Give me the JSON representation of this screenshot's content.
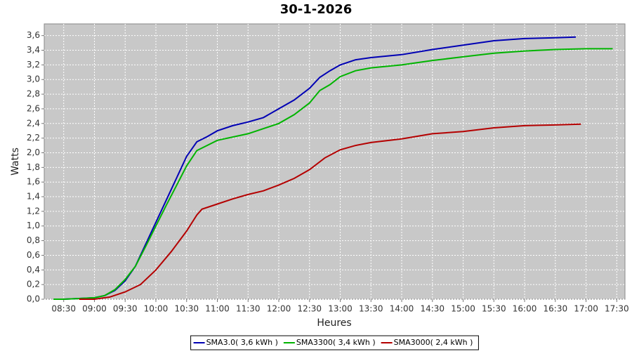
{
  "chart_data": {
    "type": "line",
    "title": "30-1-2026",
    "x_label": "Heures",
    "y_label": "Watts",
    "xlim": [
      "08:11",
      "17:38"
    ],
    "xticks": [
      "08:30",
      "09:00",
      "09:30",
      "10:00",
      "10:30",
      "11:00",
      "11:30",
      "12:00",
      "12:30",
      "13:00",
      "13:30",
      "14:00",
      "14:30",
      "15:00",
      "15:30",
      "16:00",
      "16:30",
      "17:00",
      "17:30"
    ],
    "ylim": [
      0,
      3.76
    ],
    "yticks": [
      {
        "value": 0,
        "label": "0,0"
      },
      {
        "value": 0.2,
        "label": "0,2"
      },
      {
        "value": 0.4,
        "label": "0,4"
      },
      {
        "value": 0.6,
        "label": "0,6"
      },
      {
        "value": 0.8,
        "label": "0,8"
      },
      {
        "value": 1.0,
        "label": "1,0"
      },
      {
        "value": 1.2,
        "label": "1,2"
      },
      {
        "value": 1.4,
        "label": "1,4"
      },
      {
        "value": 1.6,
        "label": "1,6"
      },
      {
        "value": 1.8,
        "label": "1,8"
      },
      {
        "value": 2.0,
        "label": "2,0"
      },
      {
        "value": 2.2,
        "label": "2,2"
      },
      {
        "value": 2.4,
        "label": "2,4"
      },
      {
        "value": 2.6,
        "label": "2,6"
      },
      {
        "value": 2.8,
        "label": "2,8"
      },
      {
        "value": 3.0,
        "label": "3,0"
      },
      {
        "value": 3.2,
        "label": "3,2"
      },
      {
        "value": 3.4,
        "label": "3,4"
      },
      {
        "value": 3.6,
        "label": "3,6"
      }
    ],
    "grid": true,
    "legend": "bottom",
    "series": [
      {
        "name": "SMA3.0( 3,6 kWh )",
        "color": "#0000b4",
        "x": [
          "08:20",
          "08:30",
          "08:45",
          "09:00",
          "09:10",
          "09:20",
          "09:30",
          "09:40",
          "09:50",
          "10:00",
          "10:10",
          "10:20",
          "10:30",
          "10:40",
          "10:50",
          "11:00",
          "11:15",
          "11:30",
          "11:45",
          "12:00",
          "12:15",
          "12:30",
          "12:40",
          "12:50",
          "13:00",
          "13:15",
          "13:30",
          "14:00",
          "14:30",
          "15:00",
          "15:30",
          "16:00",
          "16:30",
          "16:50"
        ],
        "values": [
          0,
          0,
          0.01,
          0.02,
          0.05,
          0.12,
          0.25,
          0.45,
          0.75,
          1.05,
          1.35,
          1.65,
          1.95,
          2.15,
          2.22,
          2.3,
          2.37,
          2.42,
          2.48,
          2.6,
          2.72,
          2.88,
          3.03,
          3.12,
          3.2,
          3.27,
          3.3,
          3.34,
          3.41,
          3.47,
          3.53,
          3.56,
          3.57,
          3.58
        ]
      },
      {
        "name": "SMA3300( 3,4 kWh )",
        "color": "#00b400",
        "x": [
          "08:20",
          "08:30",
          "08:45",
          "09:00",
          "09:10",
          "09:20",
          "09:30",
          "09:40",
          "09:50",
          "10:00",
          "10:10",
          "10:20",
          "10:30",
          "10:40",
          "10:50",
          "11:00",
          "11:30",
          "12:00",
          "12:15",
          "12:30",
          "12:40",
          "12:50",
          "13:00",
          "13:15",
          "13:30",
          "14:00",
          "14:30",
          "15:00",
          "15:30",
          "16:00",
          "16:30",
          "17:00",
          "17:26"
        ],
        "values": [
          0,
          0,
          0.01,
          0.02,
          0.05,
          0.13,
          0.27,
          0.45,
          0.72,
          1.0,
          1.28,
          1.55,
          1.82,
          2.03,
          2.1,
          2.17,
          2.26,
          2.4,
          2.52,
          2.68,
          2.85,
          2.93,
          3.04,
          3.12,
          3.16,
          3.2,
          3.26,
          3.31,
          3.36,
          3.39,
          3.41,
          3.42,
          3.42
        ]
      },
      {
        "name": "SMA3000( 2,4 kWh )",
        "color": "#b40000",
        "x": [
          "08:45",
          "09:00",
          "09:15",
          "09:30",
          "09:45",
          "10:00",
          "10:15",
          "10:30",
          "10:40",
          "10:45",
          "11:00",
          "11:15",
          "11:30",
          "11:45",
          "12:00",
          "12:15",
          "12:30",
          "12:45",
          "13:00",
          "13:15",
          "13:30",
          "14:00",
          "14:30",
          "15:00",
          "15:30",
          "16:00",
          "16:30",
          "16:55"
        ],
        "values": [
          0,
          0,
          0.03,
          0.1,
          0.2,
          0.4,
          0.65,
          0.93,
          1.15,
          1.23,
          1.3,
          1.37,
          1.43,
          1.48,
          1.56,
          1.65,
          1.77,
          1.93,
          2.04,
          2.1,
          2.14,
          2.19,
          2.26,
          2.29,
          2.34,
          2.37,
          2.38,
          2.39
        ]
      }
    ]
  }
}
